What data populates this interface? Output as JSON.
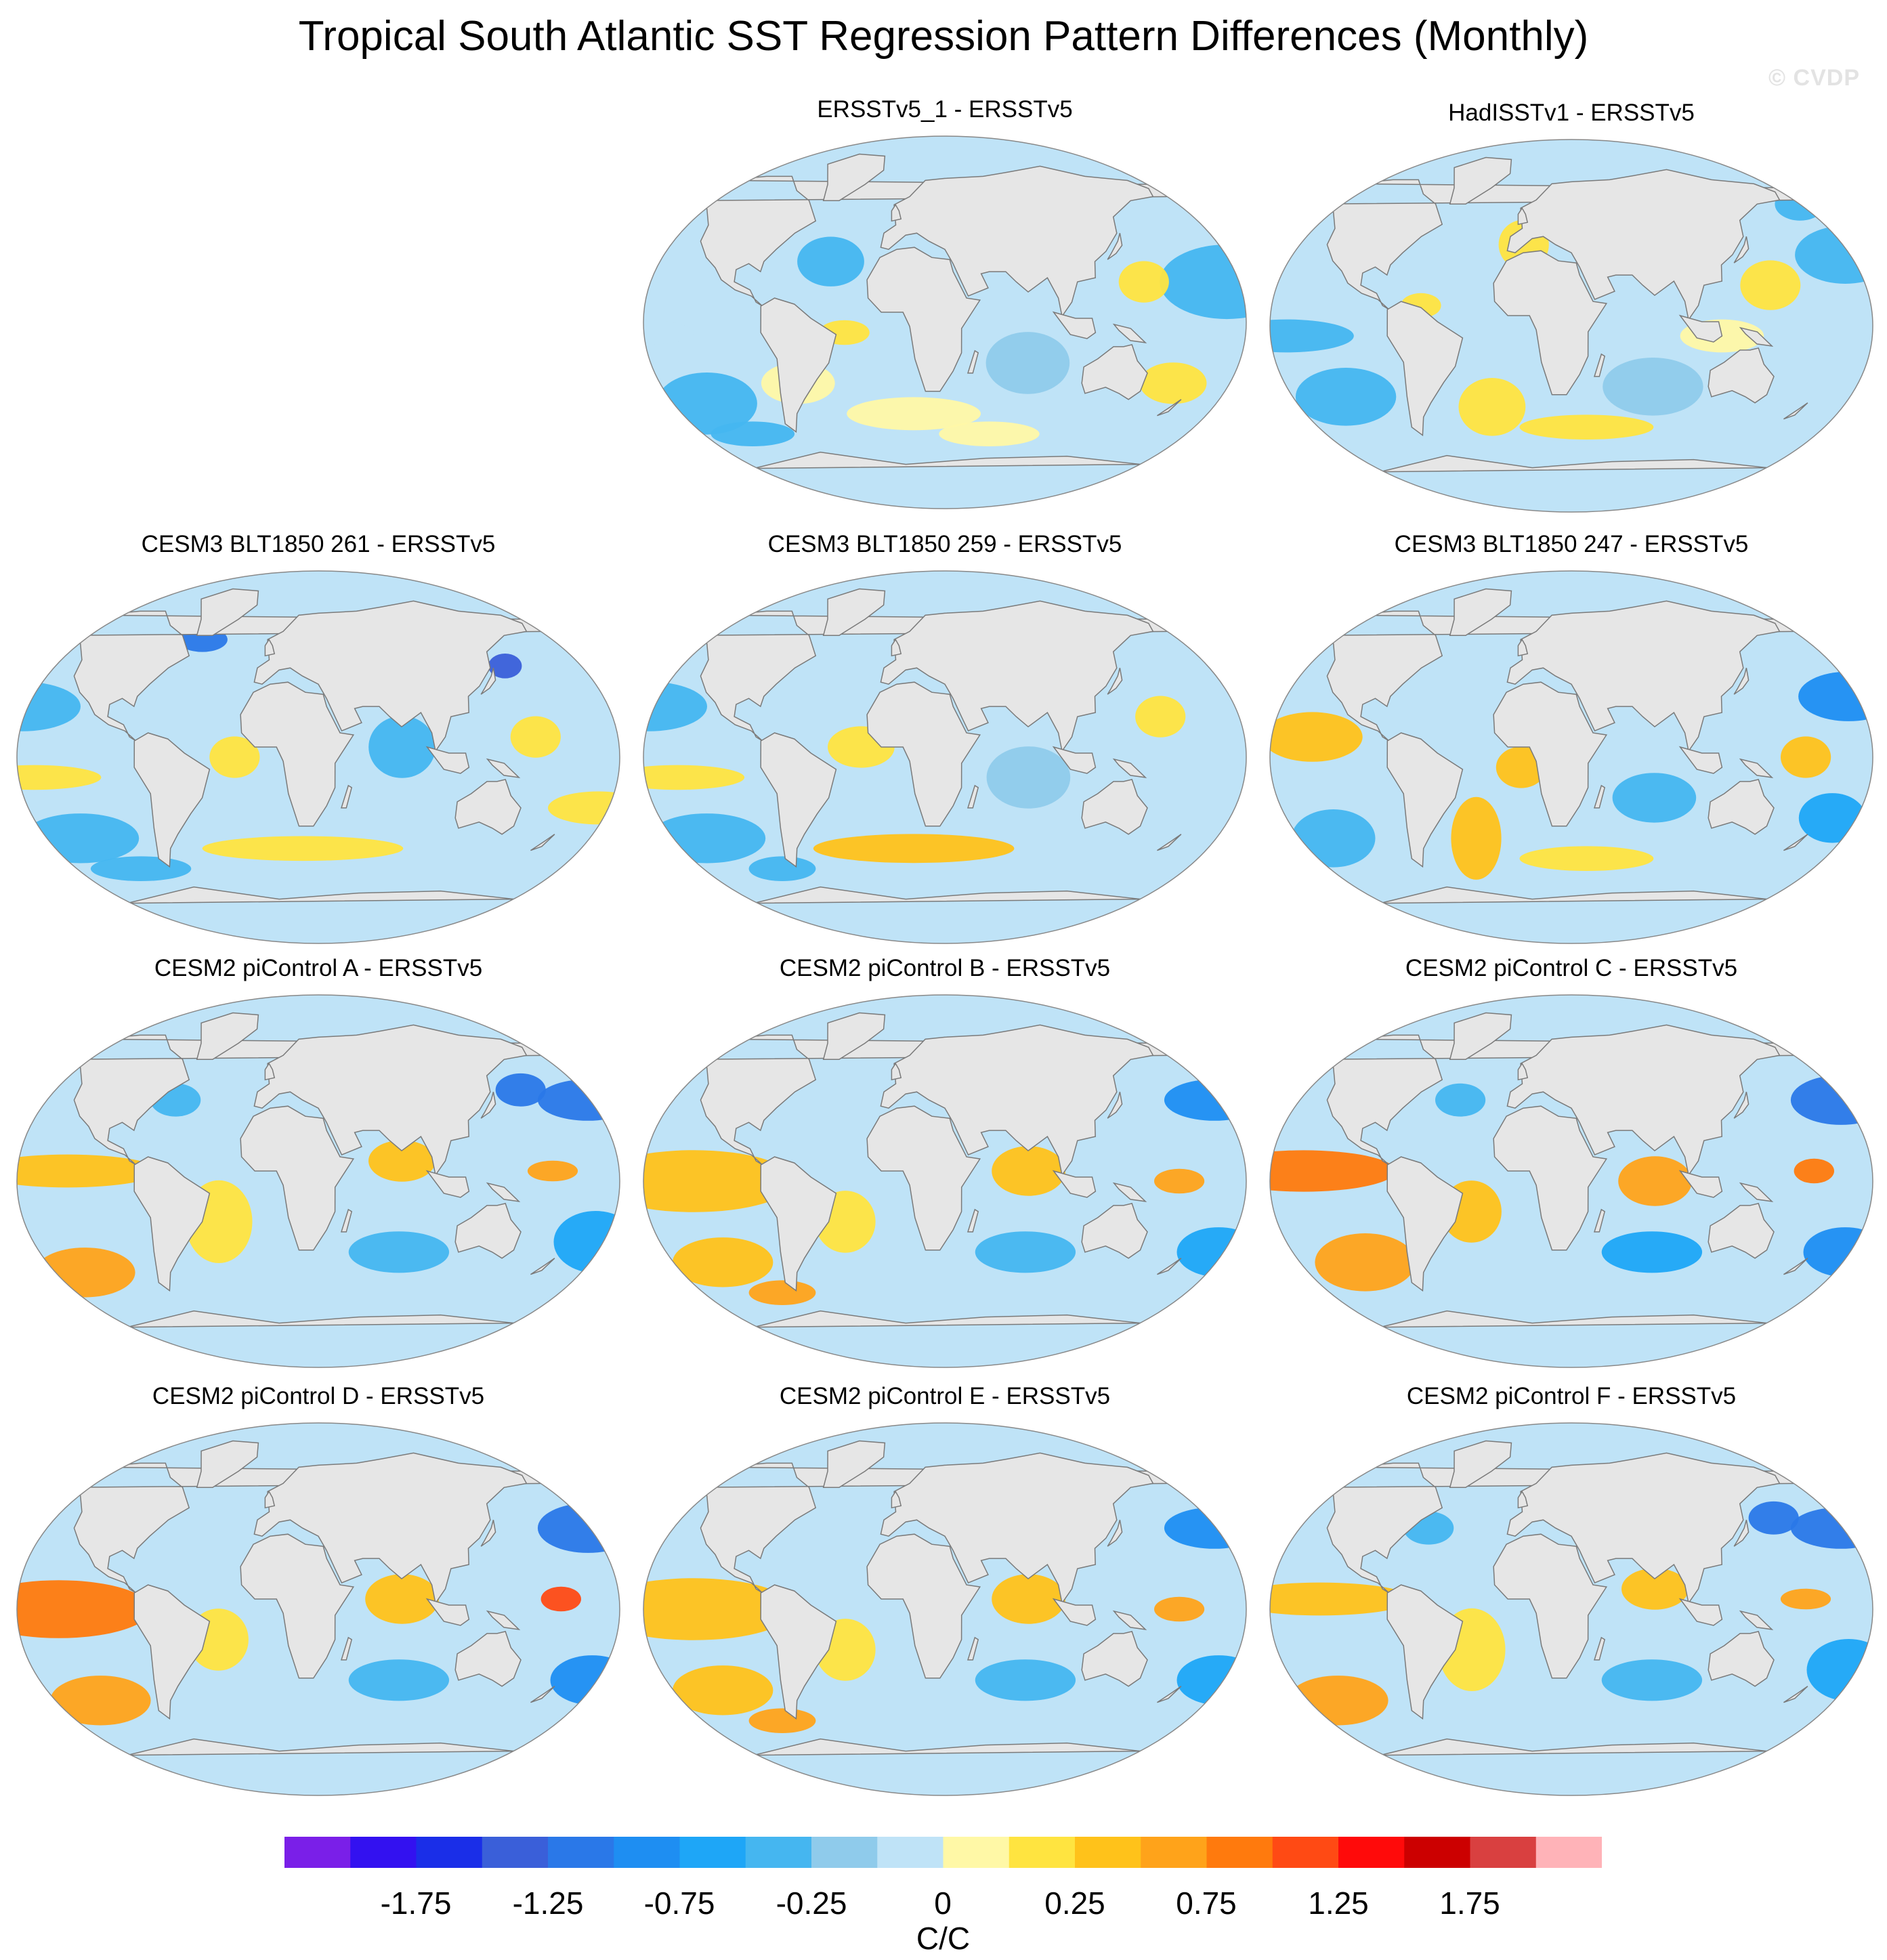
{
  "title": "Tropical South Atlantic SST Regression Pattern Differences (Monthly)",
  "watermark": "© CVDP",
  "colors": {
    "land": "#e6e6e6",
    "coast": "#7a7a7a",
    "ocean_base": "#bfe3f7",
    "negative_palette": [
      "#bfe3f7",
      "#8fcbeb",
      "#45b6f0",
      "#1ea6f7",
      "#1e8ef2",
      "#2a78e8",
      "#3a5fd9",
      "#1a2ee8",
      "#3311f0",
      "#7a1fe8"
    ],
    "positive_palette": [
      "#fff8a6",
      "#ffe440",
      "#ffc21a",
      "#ffa31a",
      "#ff7a0d",
      "#ff4a14",
      "#ff0a0a",
      "#cc0000",
      "#d94040",
      "#ffb3b8"
    ]
  },
  "panels": [
    {
      "id": "p1",
      "title": "ERSSTv5_1 - ERSSTv5",
      "pattern": "weak"
    },
    {
      "id": "p2",
      "title": "HadISSTv1 - ERSSTv5",
      "pattern": "weak2"
    },
    {
      "id": "p3",
      "title": "CESM3 BLT1850 261 - ERSSTv5",
      "pattern": "cesm3"
    },
    {
      "id": "p4",
      "title": "CESM3 BLT1850 259 - ERSSTv5",
      "pattern": "cesm3b"
    },
    {
      "id": "p5",
      "title": "CESM3 BLT1850 247 - ERSSTv5",
      "pattern": "cesm3c"
    },
    {
      "id": "p6",
      "title": "CESM2 piControl A - ERSSTv5",
      "pattern": "cesm2"
    },
    {
      "id": "p7",
      "title": "CESM2 piControl B - ERSSTv5",
      "pattern": "cesm2b"
    },
    {
      "id": "p8",
      "title": "CESM2 piControl C - ERSSTv5",
      "pattern": "cesm2c"
    },
    {
      "id": "p9",
      "title": "CESM2 piControl D - ERSSTv5",
      "pattern": "cesm2d"
    },
    {
      "id": "p10",
      "title": "CESM2 piControl E - ERSSTv5",
      "pattern": "cesm2b"
    },
    {
      "id": "p11",
      "title": "CESM2 piControl F - ERSSTv5",
      "pattern": "cesm2"
    }
  ],
  "colorbar": {
    "units": "C/C",
    "labels": [
      "-1.75",
      "-1.25",
      "-0.75",
      "-0.25",
      "0",
      "0.25",
      "0.75",
      "1.25",
      "1.75"
    ],
    "boxes": [
      "#7a1fe8",
      "#3311f0",
      "#1a2ee8",
      "#3a5fd9",
      "#2a78e8",
      "#1e8ef2",
      "#1ea6f7",
      "#45b6f0",
      "#8fcbeb",
      "#bfe3f7",
      "#fff8a6",
      "#ffe440",
      "#ffc21a",
      "#ffa31a",
      "#ff7a0d",
      "#ff4a14",
      "#ff0a0a",
      "#cc0000",
      "#d94040",
      "#ffb3b8"
    ]
  }
}
